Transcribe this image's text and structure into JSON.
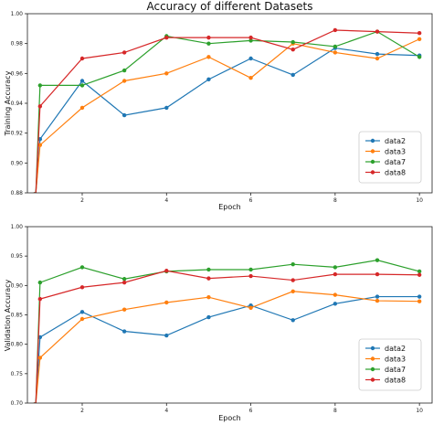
{
  "chart_data": [
    {
      "type": "line",
      "title": "Accuracy of different Datasets",
      "xlabel": "Epoch",
      "ylabel": "Training Accuracy",
      "xlim": [
        0.7,
        10.3
      ],
      "ylim": [
        0.88,
        1.0
      ],
      "xticks": [
        2,
        4,
        6,
        8,
        10
      ],
      "yticks": [
        0.88,
        0.9,
        0.92,
        0.94,
        0.96,
        0.98,
        1.0
      ],
      "ytick_labels": [
        "0.88",
        "0.90",
        "0.92",
        "0.94",
        "0.96",
        "0.98",
        "1.00"
      ],
      "grid": false,
      "legend_position": "bottom-right",
      "series": [
        {
          "name": "data2",
          "color": "#1f77b4",
          "x": [
            0.85,
            0.9,
            1,
            2,
            3,
            4,
            5,
            6,
            7,
            8,
            9,
            10
          ],
          "y": [
            0.88,
            0.88,
            0.916,
            0.955,
            0.932,
            0.937,
            0.956,
            0.97,
            0.959,
            0.977,
            0.973,
            0.972
          ]
        },
        {
          "name": "data3",
          "color": "#ff7f0e",
          "x": [
            0.85,
            0.9,
            1,
            2,
            3,
            4,
            5,
            6,
            7,
            8,
            9,
            10
          ],
          "y": [
            0.88,
            0.88,
            0.912,
            0.937,
            0.955,
            0.96,
            0.971,
            0.957,
            0.98,
            0.974,
            0.97,
            0.983
          ]
        },
        {
          "name": "data7",
          "color": "#2ca02c",
          "x": [
            0.85,
            0.9,
            1,
            2,
            3,
            4,
            5,
            6,
            7,
            8,
            9,
            10
          ],
          "y": [
            0.88,
            0.88,
            0.952,
            0.952,
            0.962,
            0.985,
            0.98,
            0.982,
            0.981,
            0.978,
            0.988,
            0.971
          ]
        },
        {
          "name": "data8",
          "color": "#d62728",
          "x": [
            0.85,
            0.9,
            1,
            2,
            3,
            4,
            5,
            6,
            7,
            8,
            9,
            10
          ],
          "y": [
            0.88,
            0.88,
            0.938,
            0.97,
            0.974,
            0.984,
            0.984,
            0.984,
            0.976,
            0.989,
            0.988,
            0.987
          ]
        }
      ]
    },
    {
      "type": "line",
      "title": "",
      "xlabel": "Epoch",
      "ylabel": "Validation Accuracy",
      "xlim": [
        0.7,
        10.3
      ],
      "ylim": [
        0.7,
        1.0
      ],
      "xticks": [
        2,
        4,
        6,
        8,
        10
      ],
      "yticks": [
        0.7,
        0.75,
        0.8,
        0.85,
        0.9,
        0.95,
        1.0
      ],
      "ytick_labels": [
        "0.70",
        "0.75",
        "0.80",
        "0.85",
        "0.90",
        "0.95",
        "1.00"
      ],
      "grid": false,
      "legend_position": "bottom-right",
      "series": [
        {
          "name": "data2",
          "color": "#1f77b4",
          "x": [
            0.85,
            0.9,
            1,
            2,
            3,
            4,
            5,
            6,
            7,
            8,
            9,
            10
          ],
          "y": [
            0.7,
            0.7,
            0.812,
            0.855,
            0.822,
            0.815,
            0.846,
            0.866,
            0.841,
            0.869,
            0.881,
            0.881
          ]
        },
        {
          "name": "data3",
          "color": "#ff7f0e",
          "x": [
            0.85,
            0.9,
            1,
            2,
            3,
            4,
            5,
            6,
            7,
            8,
            9,
            10
          ],
          "y": [
            0.7,
            0.7,
            0.777,
            0.843,
            0.859,
            0.871,
            0.88,
            0.862,
            0.89,
            0.884,
            0.874,
            0.873
          ]
        },
        {
          "name": "data7",
          "color": "#2ca02c",
          "x": [
            0.85,
            0.9,
            1,
            2,
            3,
            4,
            5,
            6,
            7,
            8,
            9,
            10
          ],
          "y": [
            0.7,
            0.7,
            0.905,
            0.931,
            0.911,
            0.924,
            0.927,
            0.927,
            0.936,
            0.931,
            0.943,
            0.924
          ]
        },
        {
          "name": "data8",
          "color": "#d62728",
          "x": [
            0.85,
            0.9,
            1,
            2,
            3,
            4,
            5,
            6,
            7,
            8,
            9,
            10
          ],
          "y": [
            0.7,
            0.7,
            0.877,
            0.897,
            0.905,
            0.925,
            0.912,
            0.916,
            0.909,
            0.919,
            0.919,
            0.918
          ]
        }
      ]
    }
  ]
}
